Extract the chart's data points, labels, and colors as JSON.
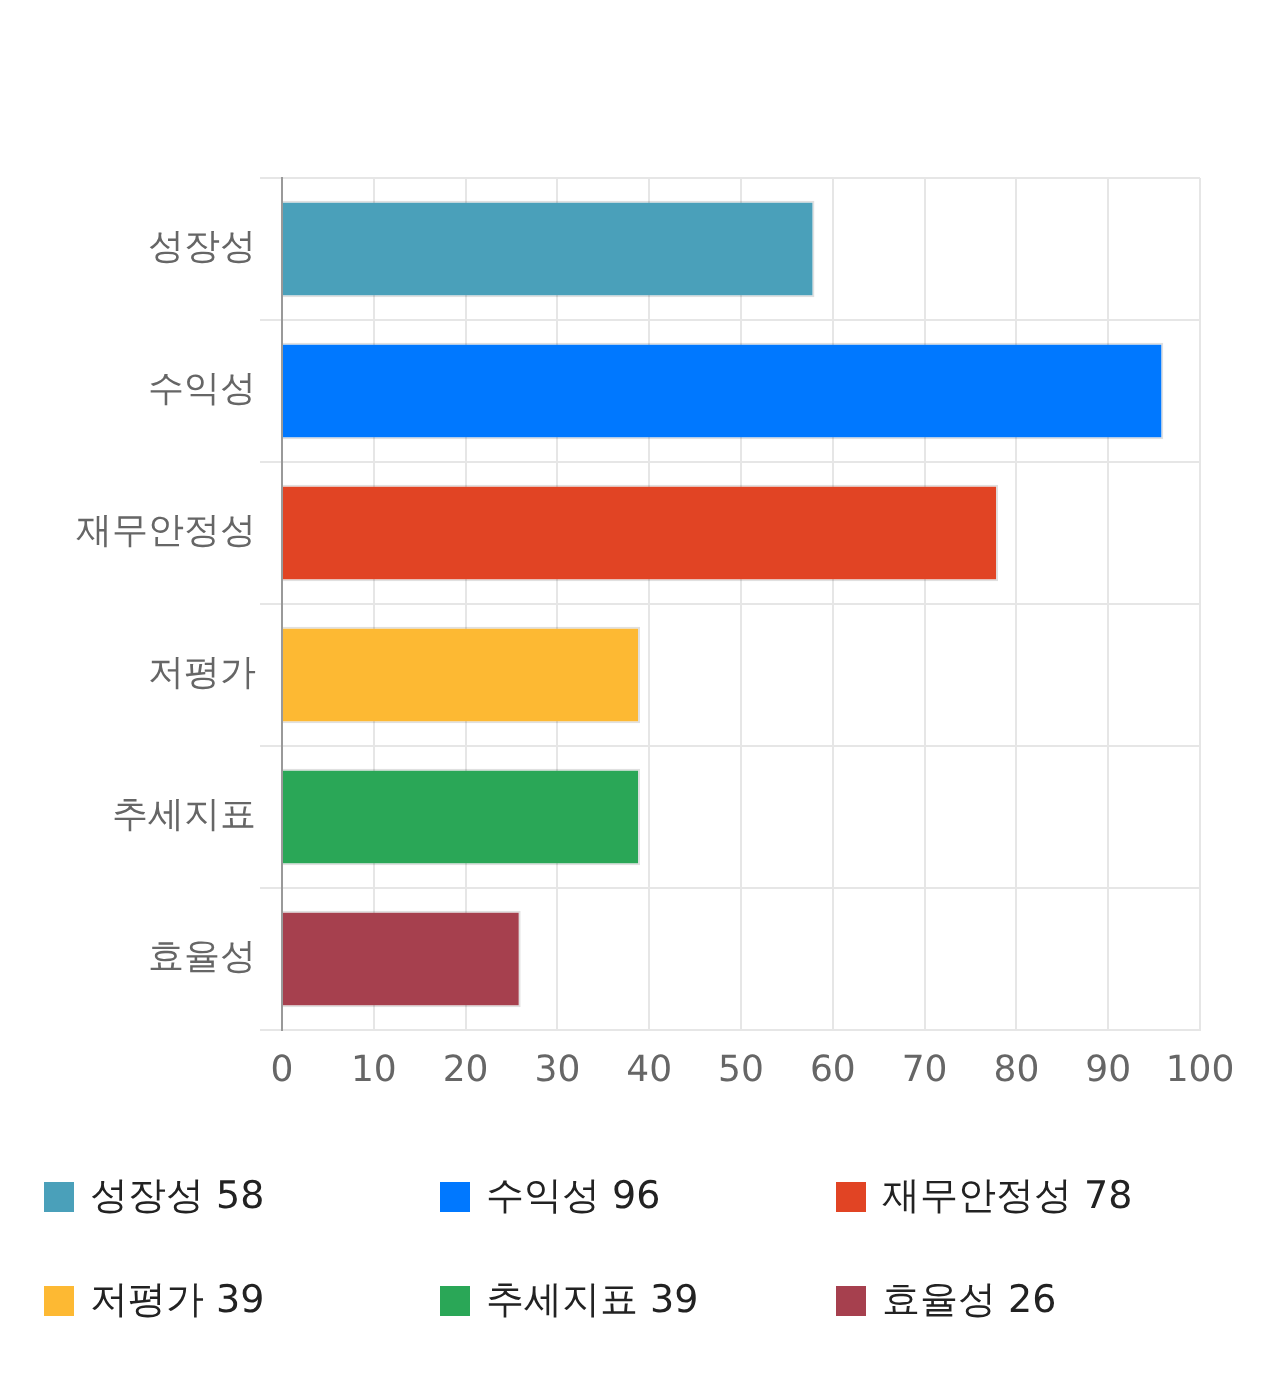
{
  "chart_data": {
    "type": "bar",
    "orientation": "horizontal",
    "categories": [
      "성장성",
      "수익성",
      "재무안정성",
      "저평가",
      "추세지표",
      "효율성"
    ],
    "series": [
      {
        "name": "성장성 58",
        "color": "#4aa0ba",
        "values": [
          58,
          null,
          null,
          null,
          null,
          null
        ]
      },
      {
        "name": "수익성 96",
        "color": "#0078ff",
        "values": [
          null,
          96,
          null,
          null,
          null,
          null
        ]
      },
      {
        "name": "재무안정성 78",
        "color": "#e14424",
        "values": [
          null,
          null,
          78,
          null,
          null,
          null
        ]
      },
      {
        "name": "저평가 39",
        "color": "#fdb933",
        "values": [
          null,
          null,
          null,
          39,
          null,
          null
        ]
      },
      {
        "name": "추세지표 39",
        "color": "#2aa757",
        "values": [
          null,
          null,
          null,
          null,
          39,
          null
        ]
      },
      {
        "name": "효율성 26",
        "color": "#a6404e",
        "values": [
          null,
          null,
          null,
          null,
          null,
          26
        ]
      }
    ],
    "xlim": [
      0,
      100
    ],
    "xticks": [
      0,
      10,
      20,
      30,
      40,
      50,
      60,
      70,
      80,
      90,
      100
    ],
    "grid": true,
    "legend": "bottom"
  }
}
